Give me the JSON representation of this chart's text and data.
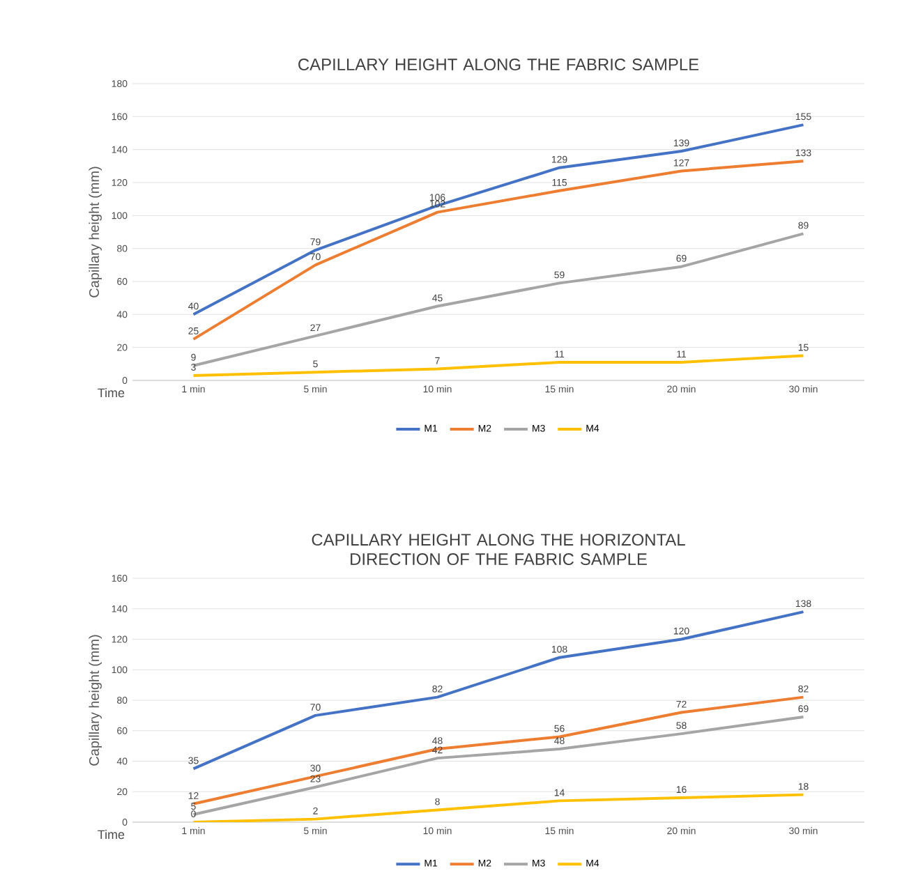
{
  "chart_data": [
    {
      "type": "line",
      "title": "CAPILLARY HEIGHT ALONG THE FABRIC SAMPLE",
      "xlabel": "Time",
      "ylabel": "Capillary height (mm)",
      "categories": [
        "1 min",
        "5 min",
        "10 min",
        "15 min",
        "20 min",
        "30 min"
      ],
      "series": [
        {
          "name": "M1",
          "color": "#4472c4",
          "values": [
            40,
            79,
            106,
            129,
            139,
            155
          ]
        },
        {
          "name": "M2",
          "color": "#ed7d31",
          "values": [
            25,
            70,
            102,
            115,
            127,
            133
          ]
        },
        {
          "name": "M3",
          "color": "#a5a5a5",
          "values": [
            9,
            27,
            45,
            59,
            69,
            89
          ]
        },
        {
          "name": "M4",
          "color": "#ffc000",
          "values": [
            3,
            5,
            7,
            11,
            11,
            15
          ]
        }
      ],
      "ylim": [
        0,
        180
      ],
      "yticks": [
        0,
        20,
        40,
        60,
        80,
        100,
        120,
        140,
        160,
        180
      ],
      "grid": "y",
      "legend": "bottom",
      "data_labels": true
    },
    {
      "type": "line",
      "title": "CAPILLARY HEIGHT ALONG THE HORIZONTAL DIRECTION OF THE FABRIC SAMPLE",
      "xlabel": "Time",
      "ylabel": "Capillary height (mm)",
      "categories": [
        "1 min",
        "5 min",
        "10 min",
        "15 min",
        "20 min",
        "30 min"
      ],
      "series": [
        {
          "name": "M1",
          "color": "#4472c4",
          "values": [
            35,
            70,
            82,
            108,
            120,
            138
          ]
        },
        {
          "name": "M2",
          "color": "#ed7d31",
          "values": [
            12,
            30,
            48,
            56,
            72,
            82
          ]
        },
        {
          "name": "M3",
          "color": "#a5a5a5",
          "values": [
            5,
            23,
            42,
            48,
            58,
            69
          ]
        },
        {
          "name": "M4",
          "color": "#ffc000",
          "values": [
            0,
            2,
            8,
            14,
            16,
            18
          ]
        }
      ],
      "ylim": [
        0,
        160
      ],
      "yticks": [
        0,
        20,
        40,
        60,
        80,
        100,
        120,
        140,
        160
      ],
      "grid": "y",
      "legend": "bottom",
      "data_labels": true
    }
  ]
}
